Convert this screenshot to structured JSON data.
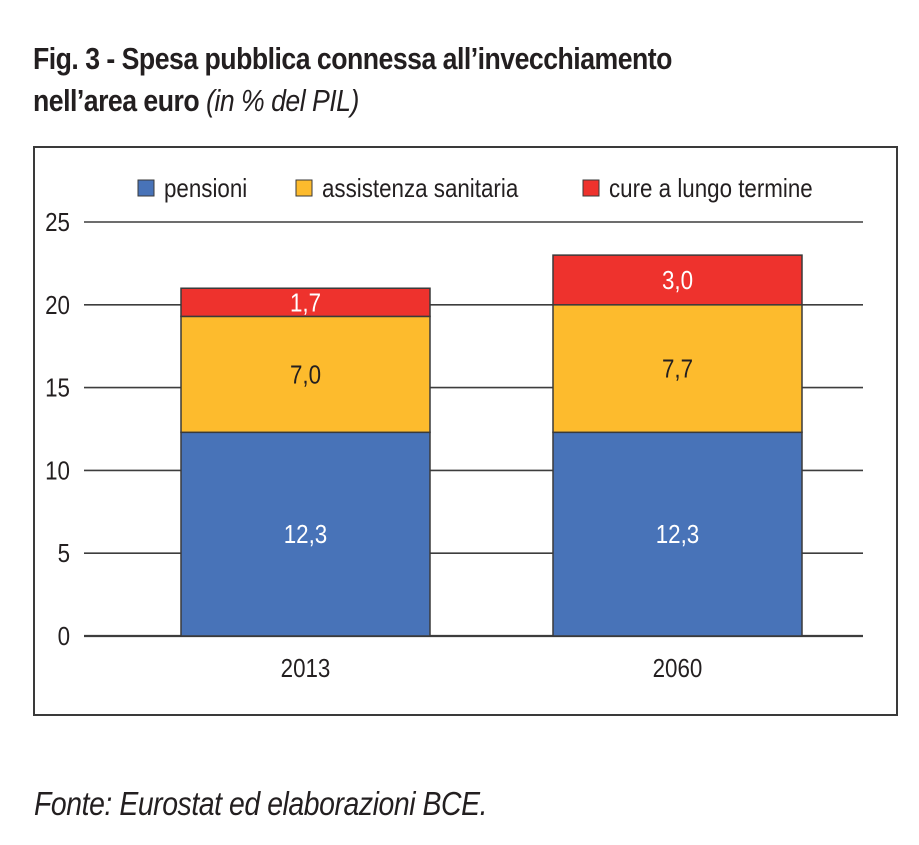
{
  "header": {
    "title_line1": "Fig. 3 - Spesa pubblica connessa all’invecchiamento",
    "title_line2_bold": "nell’area euro",
    "title_line2_italic": "(in % del PIL)"
  },
  "footer": {
    "source": "Fonte: Eurostat ed elaborazioni BCE."
  },
  "chart_data": {
    "type": "bar",
    "stacked": true,
    "title": "Fig. 3 - Spesa pubblica connessa all’invecchiamento nell’area euro (in % del PIL)",
    "xlabel": "",
    "ylabel": "",
    "categories": [
      "2013",
      "2060"
    ],
    "series": [
      {
        "name": "pensioni",
        "color": "#4873B8",
        "label_color": "#ffffff",
        "values": [
          12.3,
          12.3
        ],
        "labels": [
          "12,3",
          "12,3"
        ]
      },
      {
        "name": "assistenza sanitaria",
        "color": "#FDBB2D",
        "label_color": "#231f20",
        "values": [
          7.0,
          7.7
        ],
        "labels": [
          "7,0",
          "7,7"
        ]
      },
      {
        "name": "cure a lungo termine",
        "color": "#EE322D",
        "label_color": "#ffffff",
        "values": [
          1.7,
          3.0
        ],
        "labels": [
          "1,7",
          "3,0"
        ]
      }
    ],
    "ylim": [
      0,
      25
    ],
    "yticks": [
      0,
      5,
      10,
      15,
      20,
      25
    ],
    "ytick_labels": [
      "0",
      "5",
      "10",
      "15",
      "20",
      "25"
    ],
    "grid": true,
    "legend_position": "top",
    "data_labels": true
  }
}
